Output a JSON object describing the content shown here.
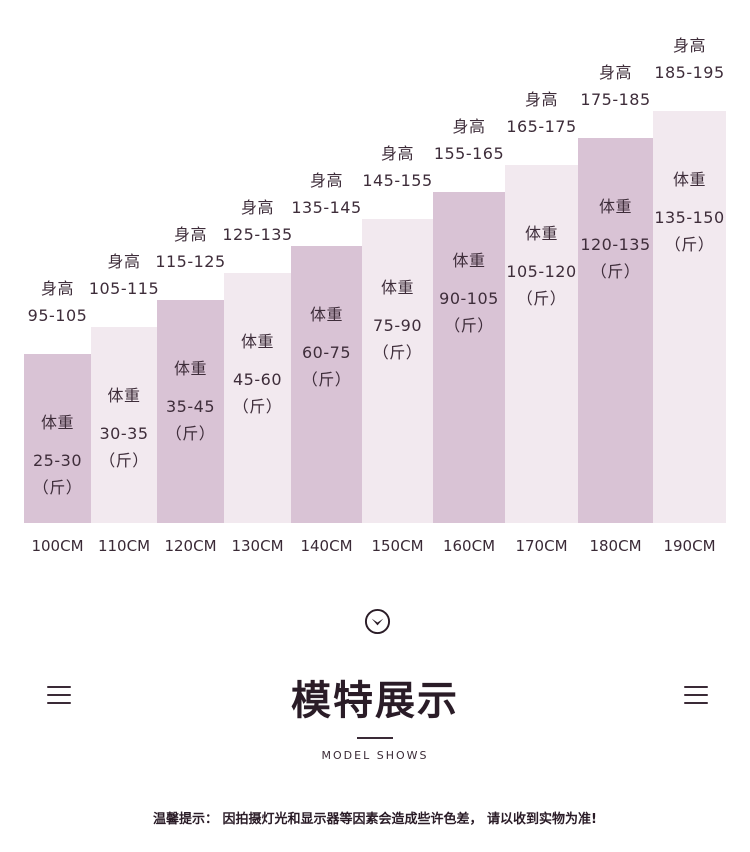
{
  "chart_data": {
    "type": "bar",
    "height_label": "身高",
    "weight_label": "体重",
    "unit": "（斤）",
    "categories": [
      "100CM",
      "110CM",
      "120CM",
      "130CM",
      "140CM",
      "150CM",
      "160CM",
      "170CM",
      "180CM",
      "190CM"
    ],
    "heights": [
      "95-105",
      "105-115",
      "115-125",
      "125-135",
      "135-145",
      "145-155",
      "155-165",
      "165-175",
      "175-185",
      "185-195"
    ],
    "weights": [
      "25-30",
      "30-35",
      "35-45",
      "45-60",
      "60-75",
      "75-90",
      "90-105",
      "105-120",
      "120-135",
      "135-150"
    ],
    "values": [
      100,
      110,
      120,
      130,
      140,
      150,
      160,
      170,
      180,
      190
    ],
    "ylim": [
      60,
      190
    ],
    "colors": {
      "dark": "#d9c3d5",
      "light": "#f2e9ef"
    }
  },
  "section": {
    "title": "模特展示",
    "subtitle": "MODEL SHOWS"
  },
  "notice": "温馨提示： 因拍摄灯光和显示器等因素会造成些许色差， 请以收到实物为准!",
  "icons": {
    "chevron": "chevron-down-circle-icon",
    "menu_left": "menu-lines-icon",
    "menu_right": "menu-lines-icon"
  }
}
